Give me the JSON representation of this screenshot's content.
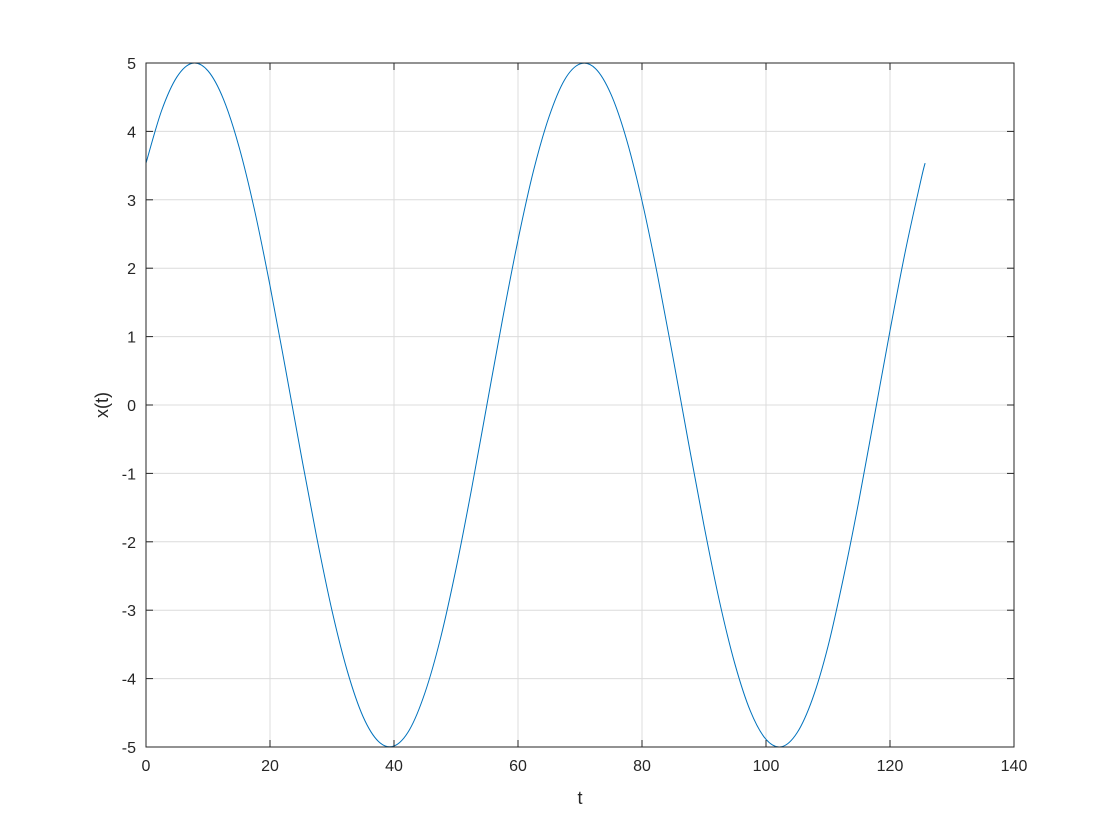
{
  "chart_data": {
    "type": "line",
    "title": "",
    "xlabel": "t",
    "ylabel": "x(t)",
    "xlim": [
      0,
      140
    ],
    "ylim": [
      -5,
      5
    ],
    "xticks": [
      "0",
      "20",
      "40",
      "60",
      "80",
      "100",
      "120",
      "140"
    ],
    "yticks": [
      "-5",
      "-4",
      "-3",
      "-2",
      "-1",
      "0",
      "1",
      "2",
      "3",
      "4",
      "5"
    ],
    "grid": true,
    "line_color": "#0072BD",
    "series": [
      {
        "x": [
          0,
          2.5,
          5,
          7.5,
          10,
          12.5,
          15,
          17.5,
          20,
          22.5,
          25,
          27.5,
          30,
          32.5,
          35,
          37.5,
          40,
          42.5,
          45,
          47.5,
          50,
          52.5,
          55,
          57.5,
          60,
          62.5,
          65,
          67.5,
          70,
          72.5,
          75,
          77.5,
          80,
          82.5,
          85,
          87.5,
          90,
          92.5,
          95,
          97.5,
          100,
          102.5,
          105,
          107.5,
          110,
          112.5,
          115,
          117.5,
          120,
          122.5,
          125,
          125.66
        ],
        "y": [
          3.536,
          4.3,
          4.798,
          4.997,
          4.885,
          4.47,
          3.776,
          2.852,
          1.745,
          0.53,
          -0.716,
          -1.918,
          -3.006,
          -3.899,
          -4.554,
          -4.919,
          -4.985,
          -4.747,
          -4.205,
          -3.411,
          -2.396,
          -1.234,
          0.011,
          1.25,
          2.411,
          3.424,
          4.212,
          4.752,
          4.986,
          4.918,
          4.542,
          3.884,
          2.985,
          1.9,
          0.695,
          -0.552,
          -1.763,
          -2.872,
          -3.791,
          -4.479,
          -4.888,
          -4.997,
          -4.794,
          -4.295,
          -3.529,
          -2.522,
          -1.391,
          -0.155,
          1.086,
          2.26,
          3.293,
          3.536
        ]
      }
    ]
  }
}
